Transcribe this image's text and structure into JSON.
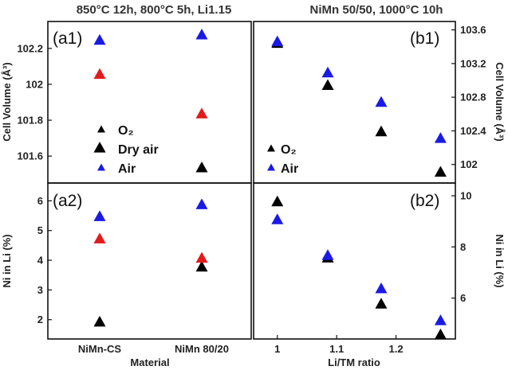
{
  "colors": {
    "O2": "#000000",
    "Dry air": "#e31a1c",
    "Air": "#1a1ae6"
  },
  "chart_data": [
    {
      "panel": "a1",
      "type": "scatter",
      "title": "850°C 12h, 800°C 5h, Li1.15",
      "label": "(a1)",
      "categories": [
        "NiMn-CS",
        "NiMn 80/20"
      ],
      "ylabel": "Cell Volume (Å³)",
      "ylim": [
        101.45,
        102.35
      ],
      "yticks": [
        "101.6",
        "101.8",
        "102",
        "102.2"
      ],
      "legend": {
        "position": "center-left",
        "entries": [
          "O₂",
          "Dry air",
          "Air"
        ]
      },
      "series": [
        {
          "name": "O₂",
          "values": [
            101.65,
            101.54
          ]
        },
        {
          "name": "Dry air",
          "values": [
            102.06,
            101.84
          ]
        },
        {
          "name": "Air",
          "values": [
            102.25,
            102.28
          ]
        }
      ]
    },
    {
      "panel": "a2",
      "type": "scatter",
      "label": "(a2)",
      "categories": [
        "NiMn-CS",
        "NiMn 80/20"
      ],
      "xlabel": "Material",
      "ylabel": "Ni in Li (%)",
      "ylim": [
        1.35,
        6.6
      ],
      "yticks": [
        "2",
        "3",
        "4",
        "5",
        "6"
      ],
      "series": [
        {
          "name": "O₂",
          "values": [
            1.95,
            3.8
          ]
        },
        {
          "name": "Dry air",
          "values": [
            4.75,
            4.1
          ]
        },
        {
          "name": "Air",
          "values": [
            5.5,
            5.9
          ]
        }
      ]
    },
    {
      "panel": "b1",
      "type": "scatter",
      "title": "NiMn 50/50, 1000°C 10h",
      "label": "(b1)",
      "ylabel": "Cell Volume (Å³)",
      "xlim": [
        0.96,
        1.3
      ],
      "ylim": [
        101.78,
        103.7
      ],
      "yticks": [
        "102",
        "102.4",
        "102.8",
        "103.2",
        "103.6"
      ],
      "legend": {
        "position": "center-left",
        "entries": [
          "O₂",
          "Air"
        ]
      },
      "series": [
        {
          "name": "O₂",
          "x": [
            1.0,
            1.085,
            1.175,
            1.275
          ],
          "y": [
            103.45,
            102.95,
            102.4,
            101.92
          ]
        },
        {
          "name": "Air",
          "x": [
            1.0,
            1.085,
            1.175,
            1.275
          ],
          "y": [
            103.47,
            103.1,
            102.75,
            102.32
          ]
        }
      ]
    },
    {
      "panel": "b2",
      "type": "scatter",
      "label": "(b2)",
      "xlabel": "Li/TM ratio",
      "xticks": [
        "1",
        "1.1",
        "1.2"
      ],
      "ylabel": "Ni in Li (%)",
      "xlim": [
        0.96,
        1.3
      ],
      "ylim": [
        4.4,
        10.5
      ],
      "yticks": [
        "6",
        "8",
        "10"
      ],
      "series": [
        {
          "name": "O₂",
          "x": [
            1.0,
            1.085,
            1.175,
            1.275
          ],
          "y": [
            9.8,
            7.6,
            5.8,
            4.6
          ]
        },
        {
          "name": "Air",
          "x": [
            1.0,
            1.085,
            1.175,
            1.275
          ],
          "y": [
            9.1,
            7.7,
            6.4,
            5.15
          ]
        }
      ]
    }
  ]
}
